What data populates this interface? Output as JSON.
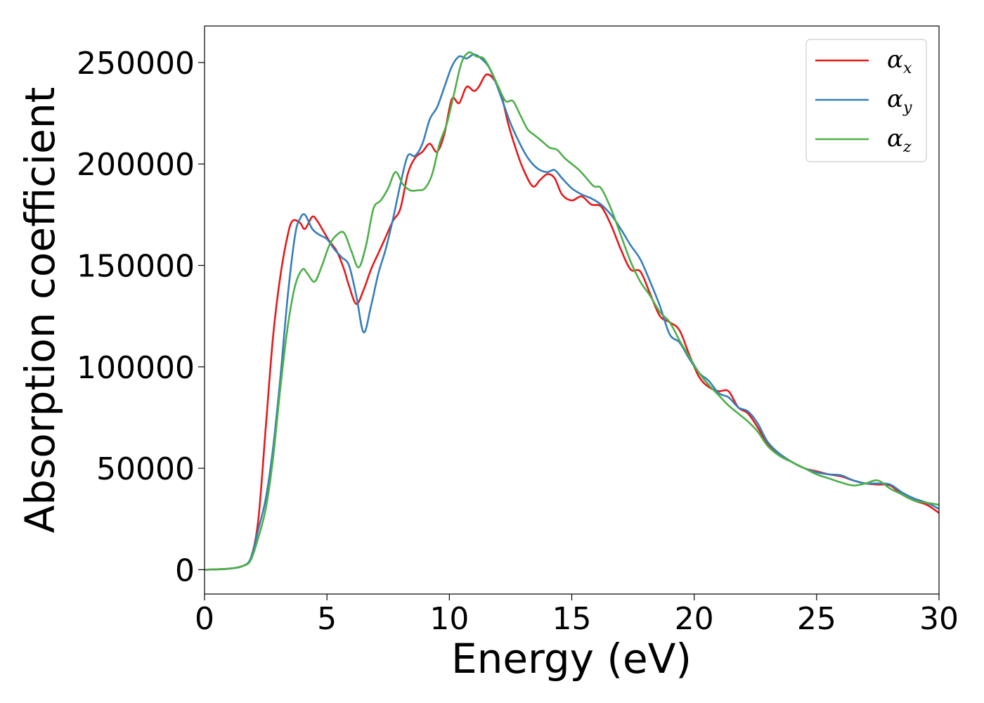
{
  "chart_data": {
    "type": "line",
    "title": "",
    "xlabel": "Energy (eV)",
    "ylabel": "Absorption coefficient",
    "xlim": [
      0,
      30
    ],
    "ylim": [
      -12000,
      268000
    ],
    "x_ticks": [
      0,
      5,
      10,
      15,
      20,
      25,
      30
    ],
    "x_tick_labels": [
      "0",
      "5",
      "10",
      "15",
      "20",
      "25",
      "30"
    ],
    "y_ticks": [
      0,
      50000,
      100000,
      150000,
      200000,
      250000
    ],
    "y_tick_labels": [
      "0",
      "50000",
      "100000",
      "150000",
      "200000",
      "250000"
    ],
    "grid": false,
    "legend_position": "top-right",
    "series": [
      {
        "name": "α",
        "subscript": "x",
        "color": "#e41a1c",
        "points": [
          [
            0,
            0
          ],
          [
            1,
            500
          ],
          [
            1.6,
            2000
          ],
          [
            1.9,
            6000
          ],
          [
            2.2,
            25000
          ],
          [
            2.5,
            70000
          ],
          [
            2.8,
            115000
          ],
          [
            3.1,
            145000
          ],
          [
            3.4,
            165000
          ],
          [
            3.6,
            172000
          ],
          [
            3.9,
            171000
          ],
          [
            4.1,
            168000
          ],
          [
            4.4,
            174000
          ],
          [
            4.6,
            172000
          ],
          [
            4.8,
            168000
          ],
          [
            5.1,
            162000
          ],
          [
            5.4,
            157000
          ],
          [
            5.7,
            148000
          ],
          [
            5.9,
            140000
          ],
          [
            6.2,
            131000
          ],
          [
            6.5,
            138000
          ],
          [
            6.8,
            148000
          ],
          [
            7.1,
            156000
          ],
          [
            7.4,
            164000
          ],
          [
            7.7,
            172000
          ],
          [
            8,
            178000
          ],
          [
            8.3,
            195000
          ],
          [
            8.6,
            203000
          ],
          [
            8.9,
            206000
          ],
          [
            9.2,
            210000
          ],
          [
            9.5,
            206000
          ],
          [
            9.8,
            215000
          ],
          [
            10.1,
            232000
          ],
          [
            10.4,
            230000
          ],
          [
            10.7,
            238000
          ],
          [
            11.0,
            236000
          ],
          [
            11.2,
            238000
          ],
          [
            11.5,
            244000
          ],
          [
            11.8,
            242000
          ],
          [
            12.1,
            235000
          ],
          [
            12.4,
            220000
          ],
          [
            12.7,
            208000
          ],
          [
            13.0,
            198000
          ],
          [
            13.4,
            189000
          ],
          [
            13.7,
            192000
          ],
          [
            14.0,
            195000
          ],
          [
            14.3,
            193000
          ],
          [
            14.6,
            185000
          ],
          [
            15.0,
            182000
          ],
          [
            15.4,
            184000
          ],
          [
            15.8,
            180000
          ],
          [
            16.2,
            179000
          ],
          [
            16.6,
            170000
          ],
          [
            17.0,
            158000
          ],
          [
            17.4,
            148000
          ],
          [
            17.8,
            147000
          ],
          [
            18.2,
            136000
          ],
          [
            18.6,
            125000
          ],
          [
            19.0,
            122000
          ],
          [
            19.4,
            118000
          ],
          [
            19.8,
            106000
          ],
          [
            20.2,
            95000
          ],
          [
            20.6,
            90000
          ],
          [
            21.0,
            88000
          ],
          [
            21.4,
            88000
          ],
          [
            21.8,
            80000
          ],
          [
            22.2,
            77000
          ],
          [
            22.6,
            70000
          ],
          [
            23.0,
            62000
          ],
          [
            23.5,
            57000
          ],
          [
            24.0,
            53000
          ],
          [
            24.5,
            50000
          ],
          [
            25.0,
            48500
          ],
          [
            25.5,
            47000
          ],
          [
            26.0,
            46000
          ],
          [
            26.5,
            44000
          ],
          [
            27.0,
            42500
          ],
          [
            27.5,
            42000
          ],
          [
            28.0,
            41500
          ],
          [
            28.5,
            37000
          ],
          [
            29.0,
            34000
          ],
          [
            29.5,
            32000
          ],
          [
            30.0,
            28000
          ]
        ]
      },
      {
        "name": "α",
        "subscript": "y",
        "color": "#377eb8",
        "points": [
          [
            0,
            0
          ],
          [
            1,
            500
          ],
          [
            1.6,
            2000
          ],
          [
            1.9,
            6000
          ],
          [
            2.2,
            20000
          ],
          [
            2.5,
            35000
          ],
          [
            2.8,
            60000
          ],
          [
            3.1,
            95000
          ],
          [
            3.4,
            135000
          ],
          [
            3.7,
            165000
          ],
          [
            3.9,
            173000
          ],
          [
            4.1,
            175000
          ],
          [
            4.4,
            168000
          ],
          [
            4.7,
            165000
          ],
          [
            5.0,
            163000
          ],
          [
            5.3,
            158000
          ],
          [
            5.6,
            154000
          ],
          [
            5.9,
            150000
          ],
          [
            6.2,
            135000
          ],
          [
            6.5,
            117000
          ],
          [
            6.8,
            130000
          ],
          [
            7.1,
            146000
          ],
          [
            7.4,
            158000
          ],
          [
            7.7,
            173000
          ],
          [
            8.0,
            190000
          ],
          [
            8.3,
            204000
          ],
          [
            8.6,
            204000
          ],
          [
            8.9,
            210000
          ],
          [
            9.2,
            222000
          ],
          [
            9.5,
            228000
          ],
          [
            9.8,
            238000
          ],
          [
            10.1,
            248000
          ],
          [
            10.4,
            253000
          ],
          [
            10.7,
            252000
          ],
          [
            11.0,
            254000
          ],
          [
            11.3,
            252000
          ],
          [
            11.6,
            248000
          ],
          [
            11.9,
            240000
          ],
          [
            12.2,
            230000
          ],
          [
            12.5,
            220000
          ],
          [
            12.8,
            212000
          ],
          [
            13.1,
            205000
          ],
          [
            13.4,
            200000
          ],
          [
            13.7,
            197000
          ],
          [
            14.0,
            196000
          ],
          [
            14.3,
            197000
          ],
          [
            14.6,
            193000
          ],
          [
            15.0,
            188000
          ],
          [
            15.4,
            185000
          ],
          [
            15.8,
            183000
          ],
          [
            16.2,
            180000
          ],
          [
            16.6,
            175000
          ],
          [
            17.0,
            168000
          ],
          [
            17.4,
            160000
          ],
          [
            17.8,
            153000
          ],
          [
            18.2,
            142000
          ],
          [
            18.6,
            130000
          ],
          [
            19.0,
            116000
          ],
          [
            19.4,
            112000
          ],
          [
            19.8,
            104000
          ],
          [
            20.2,
            97000
          ],
          [
            20.6,
            93000
          ],
          [
            21.0,
            87000
          ],
          [
            21.4,
            85000
          ],
          [
            21.8,
            80000
          ],
          [
            22.2,
            78000
          ],
          [
            22.6,
            72000
          ],
          [
            23.0,
            63000
          ],
          [
            23.5,
            57000
          ],
          [
            24.0,
            53000
          ],
          [
            24.5,
            50000
          ],
          [
            25.0,
            48000
          ],
          [
            25.5,
            47000
          ],
          [
            26.0,
            46500
          ],
          [
            26.5,
            44000
          ],
          [
            27.0,
            42500
          ],
          [
            27.5,
            42500
          ],
          [
            28.0,
            42000
          ],
          [
            28.5,
            38000
          ],
          [
            29.0,
            35000
          ],
          [
            29.5,
            33000
          ],
          [
            30.0,
            30000
          ]
        ]
      },
      {
        "name": "α",
        "subscript": "z",
        "color": "#4daf4a",
        "points": [
          [
            0,
            0
          ],
          [
            1,
            500
          ],
          [
            1.6,
            2000
          ],
          [
            1.9,
            5000
          ],
          [
            2.2,
            16000
          ],
          [
            2.5,
            30000
          ],
          [
            2.8,
            55000
          ],
          [
            3.1,
            90000
          ],
          [
            3.4,
            120000
          ],
          [
            3.7,
            140000
          ],
          [
            4.0,
            148000
          ],
          [
            4.2,
            146000
          ],
          [
            4.5,
            142000
          ],
          [
            4.8,
            150000
          ],
          [
            5.1,
            160000
          ],
          [
            5.4,
            165000
          ],
          [
            5.7,
            166000
          ],
          [
            6.0,
            157000
          ],
          [
            6.3,
            149000
          ],
          [
            6.6,
            160000
          ],
          [
            6.9,
            178000
          ],
          [
            7.2,
            182000
          ],
          [
            7.5,
            188000
          ],
          [
            7.8,
            196000
          ],
          [
            8.1,
            190000
          ],
          [
            8.4,
            187000
          ],
          [
            8.7,
            187000
          ],
          [
            9.0,
            188000
          ],
          [
            9.3,
            195000
          ],
          [
            9.6,
            210000
          ],
          [
            9.9,
            220000
          ],
          [
            10.2,
            235000
          ],
          [
            10.5,
            250000
          ],
          [
            10.8,
            255000
          ],
          [
            11.1,
            253000
          ],
          [
            11.4,
            252000
          ],
          [
            11.7,
            246000
          ],
          [
            12.0,
            238000
          ],
          [
            12.3,
            231000
          ],
          [
            12.6,
            231000
          ],
          [
            12.9,
            224000
          ],
          [
            13.2,
            217000
          ],
          [
            13.5,
            214000
          ],
          [
            13.8,
            211000
          ],
          [
            14.1,
            208000
          ],
          [
            14.4,
            207000
          ],
          [
            14.7,
            203000
          ],
          [
            15.0,
            200000
          ],
          [
            15.3,
            197000
          ],
          [
            15.6,
            193000
          ],
          [
            15.9,
            189000
          ],
          [
            16.2,
            188000
          ],
          [
            16.6,
            178000
          ],
          [
            17.0,
            165000
          ],
          [
            17.4,
            152000
          ],
          [
            17.8,
            142000
          ],
          [
            18.2,
            135000
          ],
          [
            18.6,
            127000
          ],
          [
            19.0,
            122000
          ],
          [
            19.4,
            113000
          ],
          [
            19.8,
            105000
          ],
          [
            20.2,
            97000
          ],
          [
            20.6,
            91000
          ],
          [
            21.0,
            86000
          ],
          [
            21.4,
            81000
          ],
          [
            21.8,
            77000
          ],
          [
            22.2,
            73000
          ],
          [
            22.6,
            68000
          ],
          [
            23.0,
            61000
          ],
          [
            23.5,
            56000
          ],
          [
            24.0,
            53000
          ],
          [
            24.5,
            50000
          ],
          [
            25.0,
            47000
          ],
          [
            25.5,
            45000
          ],
          [
            26.0,
            43000
          ],
          [
            26.5,
            41500
          ],
          [
            27.0,
            42500
          ],
          [
            27.5,
            44000
          ],
          [
            28.0,
            40000
          ],
          [
            28.5,
            37000
          ],
          [
            29.0,
            34000
          ],
          [
            29.5,
            33000
          ],
          [
            30.0,
            32000
          ]
        ]
      }
    ]
  }
}
